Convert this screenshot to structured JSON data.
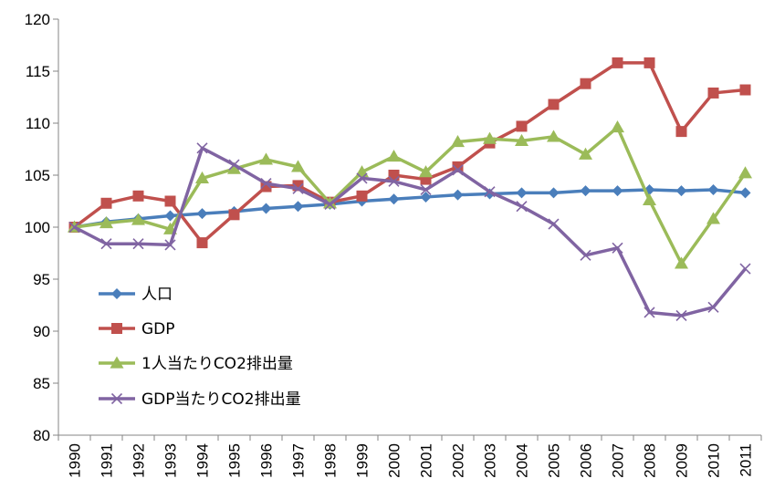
{
  "chart_data": {
    "type": "line",
    "title": "",
    "xlabel": "",
    "ylabel": "",
    "ylim": [
      80,
      120
    ],
    "yticks": [
      80,
      85,
      90,
      95,
      100,
      105,
      110,
      115,
      120
    ],
    "categories": [
      "1990",
      "1991",
      "1992",
      "1993",
      "1994",
      "1995",
      "1996",
      "1997",
      "1998",
      "1999",
      "2000",
      "2001",
      "2002",
      "2003",
      "2004",
      "2005",
      "2006",
      "2007",
      "2008",
      "2009",
      "2010",
      "2011"
    ],
    "grid": false,
    "legend_position": "left",
    "series": [
      {
        "name": "人口",
        "color": "#4a7ebb",
        "marker": "diamond",
        "values": [
          100.0,
          100.5,
          100.8,
          101.1,
          101.3,
          101.5,
          101.8,
          102.0,
          102.2,
          102.5,
          102.7,
          102.9,
          103.1,
          103.2,
          103.3,
          103.3,
          103.5,
          103.5,
          103.6,
          103.5,
          103.6,
          103.3
        ]
      },
      {
        "name": "GDP",
        "color": "#c0504d",
        "marker": "square",
        "values": [
          100.0,
          102.3,
          103.0,
          102.5,
          98.5,
          101.2,
          103.9,
          104.0,
          102.4,
          103.0,
          105.0,
          104.6,
          105.8,
          108.1,
          109.7,
          111.8,
          113.8,
          115.8,
          115.8,
          109.2,
          112.9,
          113.2
        ]
      },
      {
        "name": "1人当たりCO2排出量",
        "color": "#9bbb59",
        "marker": "triangle",
        "values": [
          100.0,
          100.4,
          100.7,
          99.8,
          104.7,
          105.6,
          106.5,
          105.8,
          102.3,
          105.3,
          106.8,
          105.3,
          108.2,
          108.5,
          108.3,
          108.7,
          107.0,
          109.6,
          102.6,
          96.5,
          100.8,
          105.2
        ]
      },
      {
        "name": "GDP当たりCO2排出量",
        "color": "#8064a2",
        "marker": "x",
        "values": [
          100.0,
          98.4,
          98.4,
          98.3,
          107.6,
          106.0,
          104.2,
          103.7,
          102.2,
          104.7,
          104.4,
          103.6,
          105.5,
          103.4,
          102.0,
          100.3,
          97.3,
          98.0,
          91.8,
          91.5,
          92.3,
          96.0
        ]
      }
    ]
  }
}
